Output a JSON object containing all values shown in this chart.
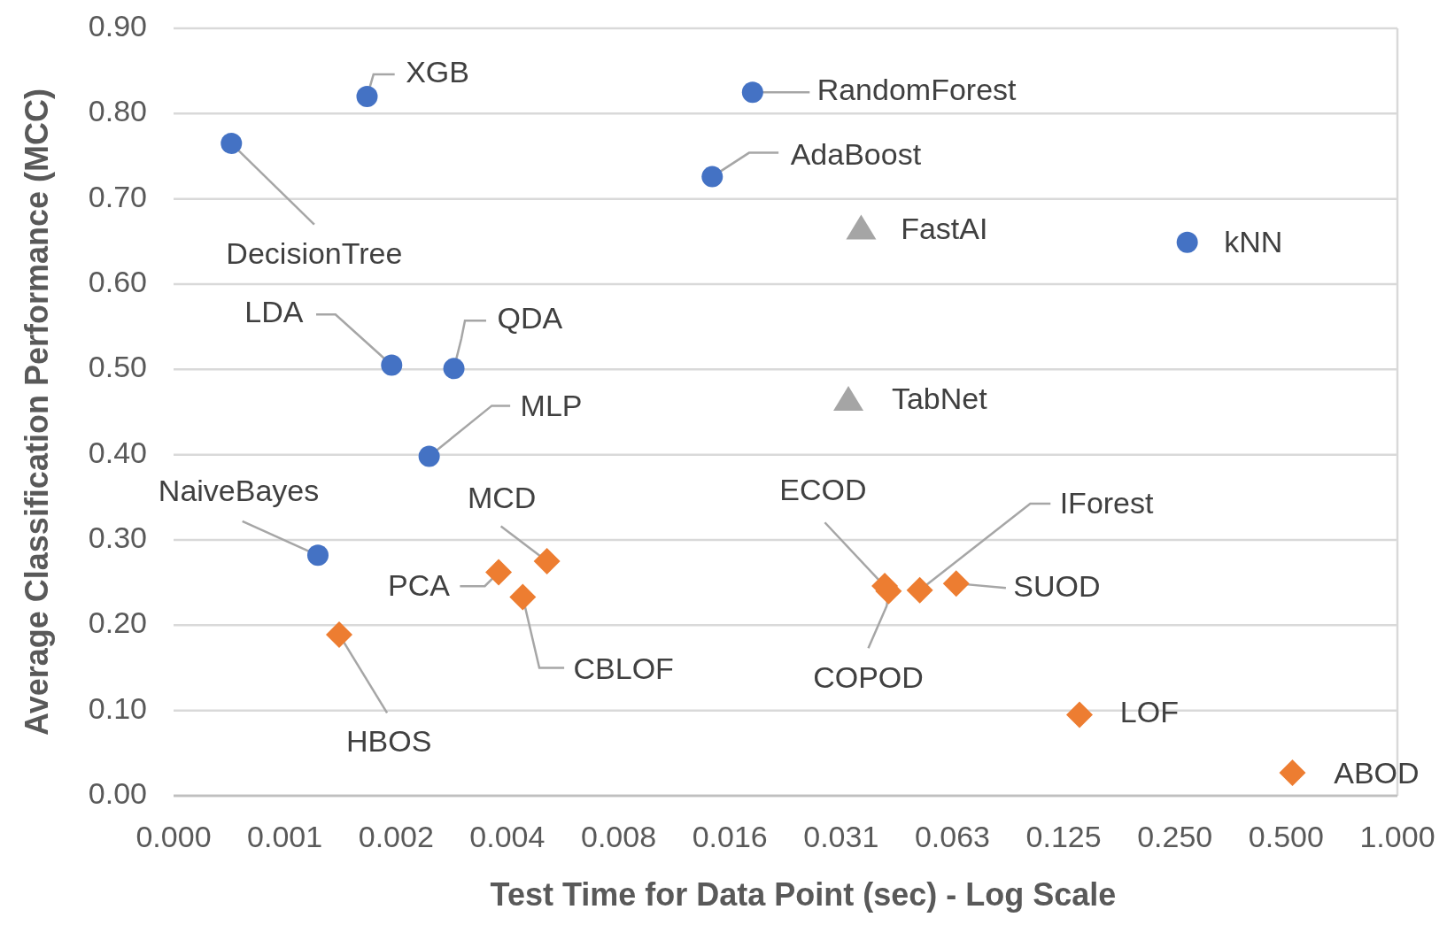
{
  "chart_data": {
    "type": "scatter",
    "xlabel": "Test Time for Data Point (sec) - Log Scale",
    "ylabel": "Average Classification Performance (MCC)",
    "log": "x",
    "grid": "y",
    "xlim": [
      0.00048828125,
      1
    ],
    "xticks": [
      {
        "value": 0.00048828125,
        "label": "0.000"
      },
      {
        "value": 0.0009765625,
        "label": "0.001"
      },
      {
        "value": 0.001953125,
        "label": "0.002"
      },
      {
        "value": 0.00390625,
        "label": "0.004"
      },
      {
        "value": 0.0078125,
        "label": "0.008"
      },
      {
        "value": 0.015625,
        "label": "0.016"
      },
      {
        "value": 0.03125,
        "label": "0.031"
      },
      {
        "value": 0.0625,
        "label": "0.063"
      },
      {
        "value": 0.125,
        "label": "0.125"
      },
      {
        "value": 0.25,
        "label": "0.250"
      },
      {
        "value": 0.5,
        "label": "0.500"
      },
      {
        "value": 1,
        "label": "1.000"
      }
    ],
    "ylim": [
      0,
      0.9
    ],
    "yticks": [
      {
        "value": 0,
        "label": "0.00"
      },
      {
        "value": 0.1,
        "label": "0.10"
      },
      {
        "value": 0.2,
        "label": "0.20"
      },
      {
        "value": 0.3,
        "label": "0.30"
      },
      {
        "value": 0.4,
        "label": "0.40"
      },
      {
        "value": 0.5,
        "label": "0.50"
      },
      {
        "value": 0.6,
        "label": "0.60"
      },
      {
        "value": 0.7,
        "label": "0.70"
      },
      {
        "value": 0.8,
        "label": "0.80"
      },
      {
        "value": 0.9,
        "label": "0.90"
      }
    ],
    "series": [
      {
        "color": "#4472c4",
        "marker": "circle",
        "x": [
          0.00163,
          0.018,
          0.0007,
          0.014,
          0.27,
          0.0019,
          0.0028,
          0.0024,
          0.0012
        ],
        "values": [
          0.82,
          0.825,
          0.765,
          0.726,
          0.649,
          0.505,
          0.501,
          0.398,
          0.282
        ]
      },
      {
        "color": "#a5a5a5",
        "marker": "triangle",
        "x": [
          0.0354,
          0.0327
        ],
        "values": [
          0.666,
          0.465
        ]
      },
      {
        "color": "#ed7d31",
        "marker": "diamond",
        "x": [
          0.00137,
          0.0037,
          0.0043,
          0.005,
          0.041,
          0.042,
          0.051,
          0.064,
          0.138,
          0.52
        ],
        "values": [
          0.189,
          0.262,
          0.233,
          0.275,
          0.246,
          0.24,
          0.241,
          0.249,
          0.095,
          0.027
        ]
      }
    ],
    "annotations": [
      {
        "text": "XGB",
        "x": 0.00163,
        "y": 0.82
      },
      {
        "text": "RandomForest",
        "x": 0.018,
        "y": 0.825
      },
      {
        "text": "DecisionTree",
        "x": 0.0007,
        "y": 0.765
      },
      {
        "text": "AdaBoost",
        "x": 0.014,
        "y": 0.726
      },
      {
        "text": "kNN",
        "x": 0.27,
        "y": 0.649
      },
      {
        "text": "LDA",
        "x": 0.0019,
        "y": 0.505
      },
      {
        "text": "QDA",
        "x": 0.0028,
        "y": 0.501
      },
      {
        "text": "MLP",
        "x": 0.0024,
        "y": 0.398
      },
      {
        "text": "NaiveBayes",
        "x": 0.0012,
        "y": 0.282
      },
      {
        "text": "FastAI",
        "x": 0.0354,
        "y": 0.666
      },
      {
        "text": "TabNet",
        "x": 0.0327,
        "y": 0.465
      },
      {
        "text": "HBOS",
        "x": 0.00137,
        "y": 0.189
      },
      {
        "text": "PCA",
        "x": 0.0037,
        "y": 0.262
      },
      {
        "text": "CBLOF",
        "x": 0.0043,
        "y": 0.233
      },
      {
        "text": "MCD",
        "x": 0.005,
        "y": 0.275
      },
      {
        "text": "ECOD",
        "x": 0.041,
        "y": 0.246
      },
      {
        "text": "COPOD",
        "x": 0.042,
        "y": 0.24
      },
      {
        "text": "IForest",
        "x": 0.051,
        "y": 0.241
      },
      {
        "text": "SUOD",
        "x": 0.064,
        "y": 0.249
      },
      {
        "text": "LOF",
        "x": 0.138,
        "y": 0.095
      },
      {
        "text": "ABOD",
        "x": 0.52,
        "y": 0.027
      }
    ]
  }
}
